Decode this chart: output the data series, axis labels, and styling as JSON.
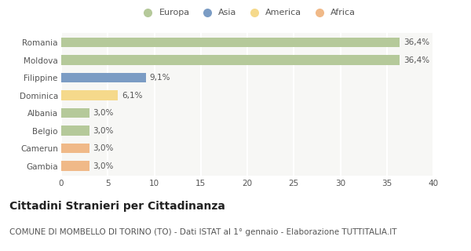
{
  "categories": [
    "Romania",
    "Moldova",
    "Filippine",
    "Dominica",
    "Albania",
    "Belgio",
    "Camerun",
    "Gambia"
  ],
  "values": [
    36.4,
    36.4,
    9.1,
    6.1,
    3.0,
    3.0,
    3.0,
    3.0
  ],
  "labels": [
    "36,4%",
    "36,4%",
    "9,1%",
    "6,1%",
    "3,0%",
    "3,0%",
    "3,0%",
    "3,0%"
  ],
  "bar_colors": [
    "#b5c99a",
    "#b5c99a",
    "#7b9cc4",
    "#f5d98b",
    "#b5c99a",
    "#b5c99a",
    "#f0b988",
    "#f0b988"
  ],
  "legend_labels": [
    "Europa",
    "Asia",
    "America",
    "Africa"
  ],
  "legend_colors": [
    "#b5c99a",
    "#7b9cc4",
    "#f5d98b",
    "#f0b988"
  ],
  "xlim": [
    0,
    40
  ],
  "xticks": [
    0,
    5,
    10,
    15,
    20,
    25,
    30,
    35,
    40
  ],
  "title": "Cittadini Stranieri per Cittadinanza",
  "subtitle": "COMUNE DI MOMBELLO DI TORINO (TO) - Dati ISTAT al 1° gennaio - Elaborazione TUTTITALIA.IT",
  "bg_color": "#ffffff",
  "plot_bg_color": "#f7f7f5",
  "grid_color": "#ffffff",
  "title_fontsize": 10,
  "subtitle_fontsize": 7.5,
  "label_fontsize": 7.5,
  "tick_fontsize": 7.5,
  "legend_fontsize": 8,
  "bar_height": 0.55
}
